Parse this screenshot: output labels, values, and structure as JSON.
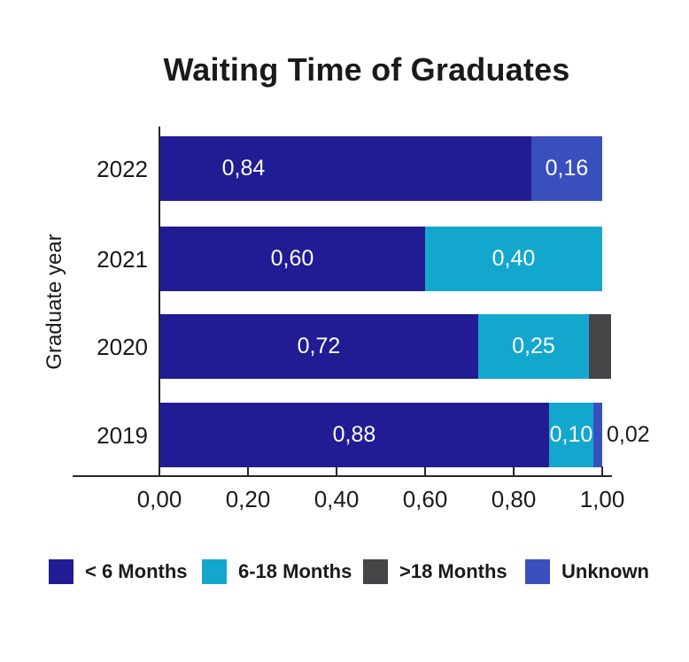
{
  "title": "Waiting Time of Graduates",
  "chart_data": {
    "type": "bar",
    "orientation": "horizontal",
    "stacked": true,
    "grid": false,
    "title": "Waiting Time of Graduates",
    "xlabel": "",
    "ylabel": "Graduate year",
    "xlim": [
      0,
      1
    ],
    "number_format": "comma-decimal",
    "xticks": [
      {
        "value": 0.0,
        "label": "0,00"
      },
      {
        "value": 0.2,
        "label": "0,20"
      },
      {
        "value": 0.4,
        "label": "0,40"
      },
      {
        "value": 0.6,
        "label": "0,60"
      },
      {
        "value": 0.8,
        "label": "0,80"
      },
      {
        "value": 1.0,
        "label": "1,00"
      }
    ],
    "categories": [
      "2022",
      "2021",
      "2020",
      "2019"
    ],
    "series_names": [
      "< 6 Months",
      "6-18 Months",
      ">18 Months",
      "Unknown"
    ],
    "series_colors": {
      "< 6 Months": "#211C93",
      "6-18 Months": "#14A7CE",
      ">18 Months": "#454547",
      "Unknown": "#3A4FBE"
    },
    "rows": [
      {
        "category": "2022",
        "segments": [
          {
            "series": "< 6 Months",
            "value": 0.84,
            "label": "0,84",
            "label_frac": 0.19
          },
          {
            "series": "Unknown",
            "value": 0.16,
            "label": "0,16"
          }
        ]
      },
      {
        "category": "2021",
        "segments": [
          {
            "series": "< 6 Months",
            "value": 0.6,
            "label": "0,60"
          },
          {
            "series": "6-18 Months",
            "value": 0.4,
            "label": "0,40"
          }
        ]
      },
      {
        "category": "2020",
        "segments": [
          {
            "series": "< 6 Months",
            "value": 0.72,
            "label": "0,72"
          },
          {
            "series": "6-18 Months",
            "value": 0.25,
            "label": "0,25"
          },
          {
            "series": ">18 Months",
            "value": 0.05,
            "label": ""
          }
        ]
      },
      {
        "category": "2019",
        "segments": [
          {
            "series": "< 6 Months",
            "value": 0.88,
            "label": "0,88"
          },
          {
            "series": "6-18 Months",
            "value": 0.1,
            "label": "0,10"
          },
          {
            "series": "Unknown",
            "value": 0.02,
            "label": "0,02",
            "label_outside": true
          }
        ]
      }
    ],
    "legend": {
      "position": "bottom",
      "items": [
        {
          "label": "< 6 Months",
          "color": "#211C93"
        },
        {
          "label": "6-18 Months",
          "color": "#14A7CE"
        },
        {
          "label": ">18 Months",
          "color": "#454547"
        },
        {
          "label": "Unknown",
          "color": "#3A4FBE"
        }
      ]
    },
    "value_label_color_inside": "#FFFFFF",
    "value_label_color_outside": "#1A1A1A",
    "axis_color": "#262626",
    "text_color": "#1A1A1A"
  }
}
